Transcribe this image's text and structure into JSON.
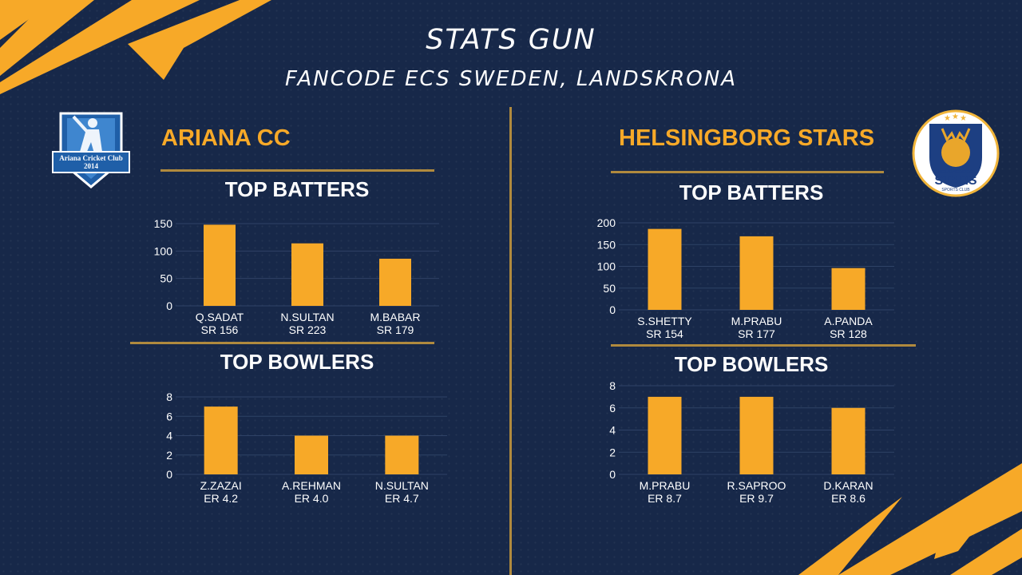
{
  "header": {
    "title": "STATS GUN",
    "subtitle": "FANCODE ECS SWEDEN, LANDSKRONA"
  },
  "colors": {
    "background": "#172849",
    "accent": "#f7a928",
    "rule": "#b08a3e",
    "text": "#ffffff"
  },
  "teams": {
    "left": {
      "name": "ARIANA CC",
      "logo": {
        "line1": "Ariana Cricket Club",
        "line2": "2014"
      },
      "batters_heading": "TOP BATTERS",
      "bowlers_heading": "TOP BOWLERS"
    },
    "right": {
      "name": "HELSINGBORG STARS",
      "logo": {
        "top": "HELSINGBORG",
        "main": "STARS",
        "bottom": "SPORTS CLUB"
      },
      "batters_heading": "TOP BATTERS",
      "bowlers_heading": "TOP BOWLERS"
    }
  },
  "chart_data": [
    {
      "id": "ariana-batters",
      "type": "bar",
      "categories": [
        "Q.SADAT",
        "N.SULTAN",
        "M.BABAR"
      ],
      "sublabels": [
        "SR 156",
        "SR 223",
        "SR 179"
      ],
      "values": [
        148,
        114,
        86
      ],
      "yticks": [
        0,
        50,
        100,
        150
      ],
      "ylim": [
        0,
        150
      ],
      "grid": true
    },
    {
      "id": "ariana-bowlers",
      "type": "bar",
      "categories": [
        "Z.ZAZAI",
        "A.REHMAN",
        "N.SULTAN"
      ],
      "sublabels": [
        "ER 4.2",
        "ER 4.0",
        "ER 4.7"
      ],
      "values": [
        7,
        4,
        4
      ],
      "yticks": [
        0,
        2,
        4,
        6,
        8
      ],
      "ylim": [
        0,
        8
      ],
      "grid": true
    },
    {
      "id": "stars-batters",
      "type": "bar",
      "categories": [
        "S.SHETTY",
        "M.PRABU",
        "A.PANDA"
      ],
      "sublabels": [
        "SR 154",
        "SR 177",
        "SR 128"
      ],
      "values": [
        186,
        169,
        96
      ],
      "yticks": [
        0,
        50,
        100,
        150,
        200
      ],
      "ylim": [
        0,
        200
      ],
      "grid": true
    },
    {
      "id": "stars-bowlers",
      "type": "bar",
      "categories": [
        "M.PRABU",
        "R.SAPROO",
        "D.KARAN"
      ],
      "sublabels": [
        "ER 8.7",
        "ER 9.7",
        "ER 8.6"
      ],
      "values": [
        7,
        7,
        6
      ],
      "yticks": [
        0,
        2,
        4,
        6,
        8
      ],
      "ylim": [
        0,
        8
      ],
      "grid": true
    }
  ]
}
